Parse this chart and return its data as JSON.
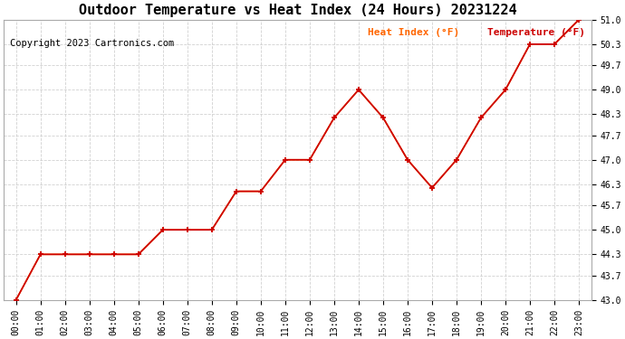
{
  "title": "Outdoor Temperature vs Heat Index (24 Hours) 20231224",
  "copyright": "Copyright 2023 Cartronics.com",
  "legend_heat_index": "Heat Index (°F)",
  "legend_temperature": "Temperature (°F)",
  "x_labels": [
    "00:00",
    "01:00",
    "02:00",
    "03:00",
    "04:00",
    "05:00",
    "06:00",
    "07:00",
    "08:00",
    "09:00",
    "10:00",
    "11:00",
    "12:00",
    "13:00",
    "14:00",
    "15:00",
    "16:00",
    "17:00",
    "18:00",
    "19:00",
    "20:00",
    "21:00",
    "22:00",
    "23:00"
  ],
  "temperature": [
    43.0,
    44.3,
    44.3,
    44.3,
    44.3,
    44.3,
    45.0,
    45.0,
    45.0,
    46.1,
    46.1,
    47.0,
    47.0,
    48.2,
    49.0,
    48.2,
    47.0,
    46.2,
    47.0,
    48.2,
    49.0,
    50.3,
    50.3,
    51.0
  ],
  "heat_index": [
    43.0,
    44.3,
    44.3,
    44.3,
    44.3,
    44.3,
    45.0,
    45.0,
    45.0,
    46.1,
    46.1,
    47.0,
    47.0,
    48.2,
    49.0,
    48.2,
    47.0,
    46.2,
    47.0,
    48.2,
    49.0,
    50.3,
    50.3,
    51.0
  ],
  "ylim": [
    43.0,
    51.0
  ],
  "yticks": [
    43.0,
    43.7,
    44.3,
    45.0,
    45.7,
    46.3,
    47.0,
    47.7,
    48.3,
    49.0,
    49.7,
    50.3,
    51.0
  ],
  "background_color": "#ffffff",
  "grid_color": "#cccccc",
  "line_color_heat": "#ff6600",
  "line_color_temp": "#cc0000",
  "title_fontsize": 11,
  "copyright_fontsize": 7.5,
  "legend_fontsize": 8
}
